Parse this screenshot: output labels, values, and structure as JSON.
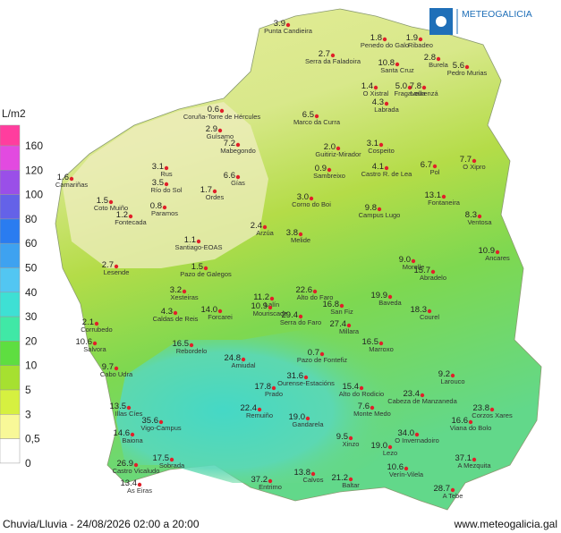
{
  "logo": "METEOGALICIA",
  "legend": {
    "title": "L/m2",
    "ticks": [
      160,
      120,
      100,
      80,
      60,
      50,
      40,
      30,
      20,
      10,
      5,
      3,
      {
        "value": 0.5,
        "label": "0,5"
      },
      0
    ],
    "colors": [
      "#ff3d9e",
      "#e24ae0",
      "#9a4fe8",
      "#6462e8",
      "#2a7cf0",
      "#3ea2f0",
      "#52c6f2",
      "#3ee0d4",
      "#40e8a6",
      "#5ede40",
      "#a6e030",
      "#d6f040",
      "#f8f898",
      "#ffffff"
    ]
  },
  "stations": [
    {
      "name": "Punta Candieira",
      "value": 3.9
    },
    {
      "name": "Serra da Faladoira",
      "value": 2.7
    },
    {
      "name": "Penedo do Galo",
      "value": 1.8
    },
    {
      "name": "Ribadeo",
      "value": 1.9
    },
    {
      "name": "Burela",
      "value": 2.8
    },
    {
      "name": "Pedro Murias",
      "value": 5.6
    },
    {
      "name": "Santa Cruz",
      "value": 10.8
    },
    {
      "name": "Fragavella",
      "value": 5.0,
      "value_label": "5.0"
    },
    {
      "name": "Lourenzá",
      "value": 7.8
    },
    {
      "name": "O Xistral",
      "value": 1.4
    },
    {
      "name": "Labrada",
      "value": 4.3
    },
    {
      "name": "Coruña-Torre de Hércules",
      "value": 0.6
    },
    {
      "name": "Guísamo",
      "value": 2.9
    },
    {
      "name": "Marco da Curra",
      "value": 6.5
    },
    {
      "name": "Guitiriz-Mirador",
      "value": 2.0,
      "value_label": "2.0"
    },
    {
      "name": "Cospeito",
      "value": 3.1
    },
    {
      "name": "Pol",
      "value": 6.7
    },
    {
      "name": "O Xipro",
      "value": 7.7
    },
    {
      "name": "Castro R. de Lea",
      "value": 4.1
    },
    {
      "name": "Sambreixo",
      "value": 0.9
    },
    {
      "name": "Mabegondo",
      "value": 7.2
    },
    {
      "name": "Rus",
      "value": 3.1
    },
    {
      "name": "Río do Sol",
      "value": 3.5
    },
    {
      "name": "Coto Muiño",
      "value": 1.5
    },
    {
      "name": "Fontecada",
      "value": 1.2
    },
    {
      "name": "Paramos",
      "value": 0.8
    },
    {
      "name": "Ordes",
      "value": 1.7
    },
    {
      "name": "Gías",
      "value": 6.6
    },
    {
      "name": "Corno do Boi",
      "value": 3.0,
      "value_label": "3.0"
    },
    {
      "name": "Campus Lugo",
      "value": 9.8
    },
    {
      "name": "Fontaneira",
      "value": 13.1
    },
    {
      "name": "Ventosa",
      "value": 8.3
    },
    {
      "name": "Arzúa",
      "value": 2.4
    },
    {
      "name": "Melide",
      "value": 3.8
    },
    {
      "name": "Santiago-EOAS",
      "value": 1.1
    },
    {
      "name": "Ancares",
      "value": 10.9
    },
    {
      "name": "Lesende",
      "value": 2.7
    },
    {
      "name": "Pazo de Galegos",
      "value": 1.5
    },
    {
      "name": "Camariñas",
      "value": 1.6
    },
    {
      "name": "Morelle",
      "value": 9.0,
      "value_label": "9.0"
    },
    {
      "name": "Abradelo",
      "value": 15.7
    },
    {
      "name": "Lalín",
      "value": 11.2
    },
    {
      "name": "Alto do Faro",
      "value": 22.6
    },
    {
      "name": "Xesteiras",
      "value": 3.2
    },
    {
      "name": "Forcarei",
      "value": 14.0,
      "value_label": "14.0"
    },
    {
      "name": "Mouriscade",
      "value": 10.9
    },
    {
      "name": "Caldas de Reis",
      "value": 4.3
    },
    {
      "name": "Baveda",
      "value": 19.9
    },
    {
      "name": "Courel",
      "value": 18.3
    },
    {
      "name": "San Fiz",
      "value": 16.8
    },
    {
      "name": "Serra do Faro",
      "value": 29.4
    },
    {
      "name": "Millara",
      "value": 27.4
    },
    {
      "name": "Marroxo",
      "value": 16.5
    },
    {
      "name": "Rebordelo",
      "value": 16.5
    },
    {
      "name": "Corrubedo",
      "value": 2.1
    },
    {
      "name": "Salvora",
      "value": 10.6
    },
    {
      "name": "Amiudal",
      "value": 24.8
    },
    {
      "name": "Pazo de Fontefiz",
      "value": 0.7
    },
    {
      "name": "Alto do Rodicio",
      "value": 15.4
    },
    {
      "name": "Cabeza de Manzaneda",
      "value": 23.4
    },
    {
      "name": "Larouco",
      "value": 9.2
    },
    {
      "name": "Corzos Xares",
      "value": 23.8
    },
    {
      "name": "Viana do Bolo",
      "value": 16.6
    },
    {
      "name": "Monte Medo",
      "value": 7.6
    },
    {
      "name": "O Invernadoiro",
      "value": 34.0,
      "value_label": "34.0"
    },
    {
      "name": "Gandarela",
      "value": 19.0,
      "value_label": "19.0"
    },
    {
      "name": "Xinzo",
      "value": 9.5
    },
    {
      "name": "Lezo",
      "value": 19.0,
      "value_label": "19.0"
    },
    {
      "name": "A Mezquita",
      "value": 37.1
    },
    {
      "name": "A Tebe",
      "value": 28.7
    },
    {
      "name": "Verín-Vilela",
      "value": 10.6
    },
    {
      "name": "Calvos",
      "value": 13.8
    },
    {
      "name": "Baltar",
      "value": 21.2
    },
    {
      "name": "Entrimo",
      "value": 37.2
    },
    {
      "name": "Castro Vicaludo",
      "value": 26.9
    },
    {
      "name": "As Eiras",
      "value": 13.4
    },
    {
      "name": "Sobrada",
      "value": 17.5
    },
    {
      "name": "Baiona",
      "value": 14.6
    },
    {
      "name": "Vigo-Campus",
      "value": 35.6
    },
    {
      "name": "Illas Cíes",
      "value": 13.5
    },
    {
      "name": "Cabo Udra",
      "value": 9.7
    },
    {
      "name": "Prado",
      "value": 17.8
    },
    {
      "name": "Ourense-Estacións",
      "value": 31.6
    },
    {
      "name": "Remuiño",
      "value": 22.4
    }
  ],
  "footer": {
    "caption": "Chuvia/Lluvia - 24/08/2026 02:00 a 20:00",
    "url": "www.meteogalicia.gal"
  }
}
